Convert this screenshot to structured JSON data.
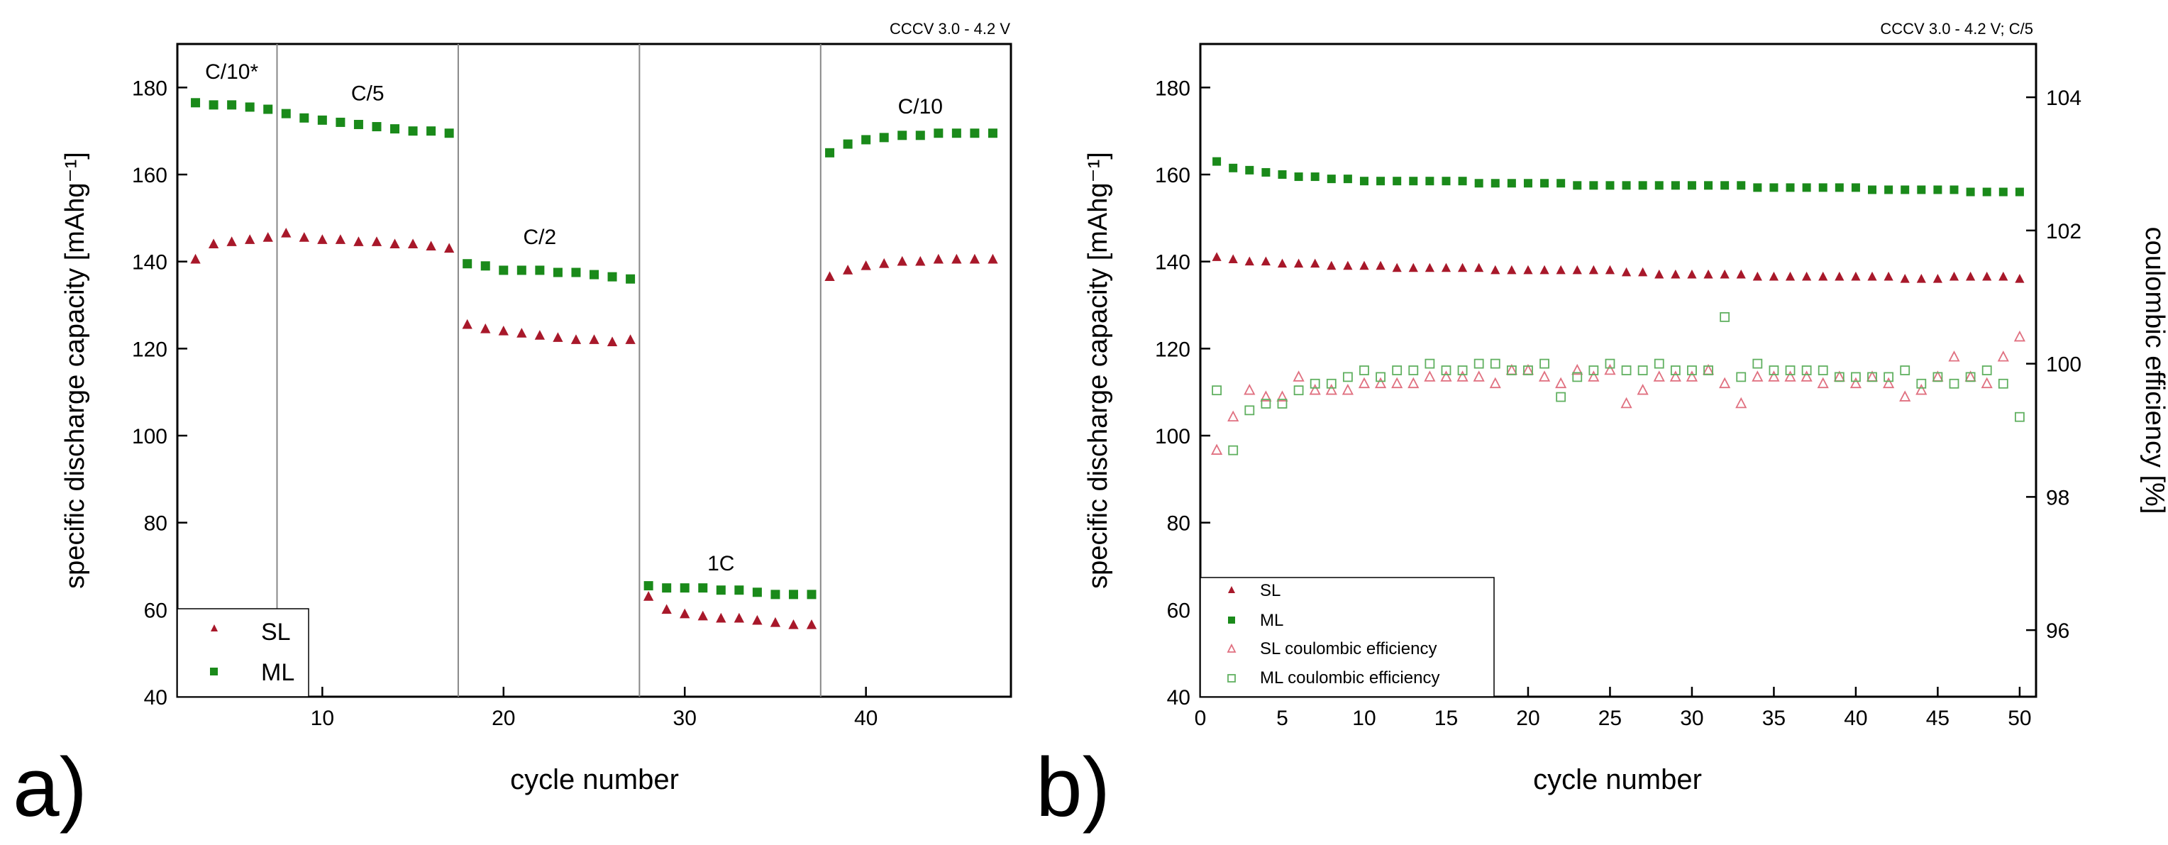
{
  "colors": {
    "sl": "#a8182a",
    "ml": "#1a8a1a",
    "axis": "#000000",
    "divider": "#888888"
  },
  "chart_data": [
    {
      "type": "scatter",
      "panel_label": "a)",
      "condition": "CCCV 3.0 - 4.2 V",
      "xlabel": "cycle number",
      "ylabel": "specific discharge capacity [mAhg⁻¹]",
      "xlim": [
        2,
        48
      ],
      "ylim": [
        40,
        190
      ],
      "xticks": [
        10,
        20,
        30,
        40
      ],
      "yticks": [
        40,
        60,
        80,
        100,
        120,
        140,
        160,
        180
      ],
      "grid": false,
      "legend_position": "bottom-left",
      "dividers": [
        7.5,
        17.5,
        27.5,
        37.5
      ],
      "rate_labels": [
        {
          "text": "C/10*",
          "x": 5.0,
          "y": 182
        },
        {
          "text": "C/5",
          "x": 12.5,
          "y": 177
        },
        {
          "text": "C/2",
          "x": 22.0,
          "y": 144
        },
        {
          "text": "1C",
          "x": 32.0,
          "y": 69
        },
        {
          "text": "C/10",
          "x": 43.0,
          "y": 174
        }
      ],
      "series": [
        {
          "name": "SL",
          "marker": "triangle",
          "filled": true,
          "color": "#a8182a",
          "x": [
            3,
            4,
            5,
            6,
            7,
            8,
            9,
            10,
            11,
            12,
            13,
            14,
            15,
            16,
            17,
            18,
            19,
            20,
            21,
            22,
            23,
            24,
            25,
            26,
            27,
            28,
            29,
            30,
            31,
            32,
            33,
            34,
            35,
            36,
            37,
            38,
            39,
            40,
            41,
            42,
            43,
            44,
            45,
            46,
            47
          ],
          "y": [
            140.5,
            144,
            144.5,
            145,
            145.5,
            146.5,
            145.5,
            145,
            145,
            144.5,
            144.5,
            144,
            144,
            143.5,
            143,
            125.5,
            124.5,
            124,
            123.5,
            123,
            122.5,
            122,
            122,
            121.5,
            122,
            63,
            60,
            59,
            58.5,
            58,
            58,
            57.5,
            57,
            56.5,
            56.5,
            136.5,
            138,
            139,
            139.5,
            140,
            140,
            140.5,
            140.5,
            140.5,
            140.5
          ]
        },
        {
          "name": "ML",
          "marker": "square",
          "filled": true,
          "color": "#1a8a1a",
          "x": [
            3,
            4,
            5,
            6,
            7,
            8,
            9,
            10,
            11,
            12,
            13,
            14,
            15,
            16,
            17,
            18,
            19,
            20,
            21,
            22,
            23,
            24,
            25,
            26,
            27,
            28,
            29,
            30,
            31,
            32,
            33,
            34,
            35,
            36,
            37,
            38,
            39,
            40,
            41,
            42,
            43,
            44,
            45,
            46,
            47
          ],
          "y": [
            176.5,
            176,
            176,
            175.5,
            175,
            174,
            173,
            172.5,
            172,
            171.5,
            171,
            170.5,
            170,
            170,
            169.5,
            139.5,
            139,
            138,
            138,
            138,
            137.5,
            137.5,
            137,
            136.5,
            136,
            65.5,
            65,
            65,
            65,
            64.5,
            64.5,
            64,
            63.5,
            63.5,
            63.5,
            165,
            167,
            168,
            168.5,
            169,
            169,
            169.5,
            169.5,
            169.5,
            169.5
          ]
        }
      ]
    },
    {
      "type": "scatter",
      "panel_label": "b)",
      "condition": "CCCV 3.0 - 4.2 V; C/5",
      "xlabel": "cycle number",
      "ylabel": "specific discharge capacity [mAhg⁻¹]",
      "y2label": "coulombic efficiency [%]",
      "xlim": [
        0,
        51
      ],
      "ylim": [
        40,
        190
      ],
      "y2lim": [
        95,
        104.8
      ],
      "xticks": [
        0,
        5,
        10,
        15,
        20,
        25,
        30,
        35,
        40,
        45,
        50
      ],
      "yticks": [
        40,
        60,
        80,
        100,
        120,
        140,
        160,
        180
      ],
      "y2ticks": [
        96,
        98,
        100,
        102,
        104
      ],
      "grid": false,
      "legend_position": "bottom-left",
      "series": [
        {
          "name": "SL",
          "axis": "left",
          "marker": "triangle",
          "filled": true,
          "color": "#a8182a",
          "x": [
            1,
            2,
            3,
            4,
            5,
            6,
            7,
            8,
            9,
            10,
            11,
            12,
            13,
            14,
            15,
            16,
            17,
            18,
            19,
            20,
            21,
            22,
            23,
            24,
            25,
            26,
            27,
            28,
            29,
            30,
            31,
            32,
            33,
            34,
            35,
            36,
            37,
            38,
            39,
            40,
            41,
            42,
            43,
            44,
            45,
            46,
            47,
            48,
            49,
            50
          ],
          "y": [
            141,
            140.5,
            140,
            140,
            139.5,
            139.5,
            139.5,
            139,
            139,
            139,
            139,
            138.5,
            138.5,
            138.5,
            138.5,
            138.5,
            138.5,
            138,
            138,
            138,
            138,
            138,
            138,
            138,
            138,
            137.5,
            137.5,
            137,
            137,
            137,
            137,
            137,
            137,
            136.5,
            136.5,
            136.5,
            136.5,
            136.5,
            136.5,
            136.5,
            136.5,
            136.5,
            136,
            136,
            136,
            136.5,
            136.5,
            136.5,
            136.5,
            136
          ]
        },
        {
          "name": "ML",
          "axis": "left",
          "marker": "square",
          "filled": true,
          "color": "#1a8a1a",
          "x": [
            1,
            2,
            3,
            4,
            5,
            6,
            7,
            8,
            9,
            10,
            11,
            12,
            13,
            14,
            15,
            16,
            17,
            18,
            19,
            20,
            21,
            22,
            23,
            24,
            25,
            26,
            27,
            28,
            29,
            30,
            31,
            32,
            33,
            34,
            35,
            36,
            37,
            38,
            39,
            40,
            41,
            42,
            43,
            44,
            45,
            46,
            47,
            48,
            49,
            50
          ],
          "y": [
            163,
            161.5,
            161,
            160.5,
            160,
            159.5,
            159.5,
            159,
            159,
            158.5,
            158.5,
            158.5,
            158.5,
            158.5,
            158.5,
            158.5,
            158,
            158,
            158,
            158,
            158,
            158,
            157.5,
            157.5,
            157.5,
            157.5,
            157.5,
            157.5,
            157.5,
            157.5,
            157.5,
            157.5,
            157.5,
            157,
            157,
            157,
            157,
            157,
            157,
            157,
            156.5,
            156.5,
            156.5,
            156.5,
            156.5,
            156.5,
            156,
            156,
            156,
            156
          ]
        },
        {
          "name": "SL coulombic efficiency",
          "axis": "right",
          "marker": "triangle",
          "filled": false,
          "color": "#e07080",
          "x": [
            1,
            2,
            3,
            4,
            5,
            6,
            7,
            8,
            9,
            10,
            11,
            12,
            13,
            14,
            15,
            16,
            17,
            18,
            19,
            20,
            21,
            22,
            23,
            24,
            25,
            26,
            27,
            28,
            29,
            30,
            31,
            32,
            33,
            34,
            35,
            36,
            37,
            38,
            39,
            40,
            41,
            42,
            43,
            44,
            45,
            46,
            47,
            48,
            49,
            50
          ],
          "y": [
            98.7,
            99.2,
            99.6,
            99.5,
            99.5,
            99.8,
            99.6,
            99.6,
            99.6,
            99.7,
            99.7,
            99.7,
            99.7,
            99.8,
            99.8,
            99.8,
            99.8,
            99.7,
            99.9,
            99.9,
            99.8,
            99.7,
            99.9,
            99.8,
            99.9,
            99.4,
            99.6,
            99.8,
            99.8,
            99.8,
            99.9,
            99.7,
            99.4,
            99.8,
            99.8,
            99.8,
            99.8,
            99.7,
            99.8,
            99.7,
            99.8,
            99.7,
            99.5,
            99.6,
            99.8,
            100.1,
            99.8,
            99.7,
            100.1,
            100.4
          ]
        },
        {
          "name": "ML coulombic efficiency",
          "axis": "right",
          "marker": "square",
          "filled": false,
          "color": "#60b060",
          "x": [
            1,
            2,
            3,
            4,
            5,
            6,
            7,
            8,
            9,
            10,
            11,
            12,
            13,
            14,
            15,
            16,
            17,
            18,
            19,
            20,
            21,
            22,
            23,
            24,
            25,
            26,
            27,
            28,
            29,
            30,
            31,
            32,
            33,
            34,
            35,
            36,
            37,
            38,
            39,
            40,
            41,
            42,
            43,
            44,
            45,
            46,
            47,
            48,
            49,
            50
          ],
          "y": [
            99.6,
            98.7,
            99.3,
            99.4,
            99.4,
            99.6,
            99.7,
            99.7,
            99.8,
            99.9,
            99.8,
            99.9,
            99.9,
            100.0,
            99.9,
            99.9,
            100.0,
            100.0,
            99.9,
            99.9,
            100.0,
            99.5,
            99.8,
            99.9,
            100.0,
            99.9,
            99.9,
            100.0,
            99.9,
            99.9,
            99.9,
            100.7,
            99.8,
            100.0,
            99.9,
            99.9,
            99.9,
            99.9,
            99.8,
            99.8,
            99.8,
            99.8,
            99.9,
            99.7,
            99.8,
            99.7,
            99.8,
            99.9,
            99.7,
            99.2
          ]
        }
      ]
    }
  ]
}
